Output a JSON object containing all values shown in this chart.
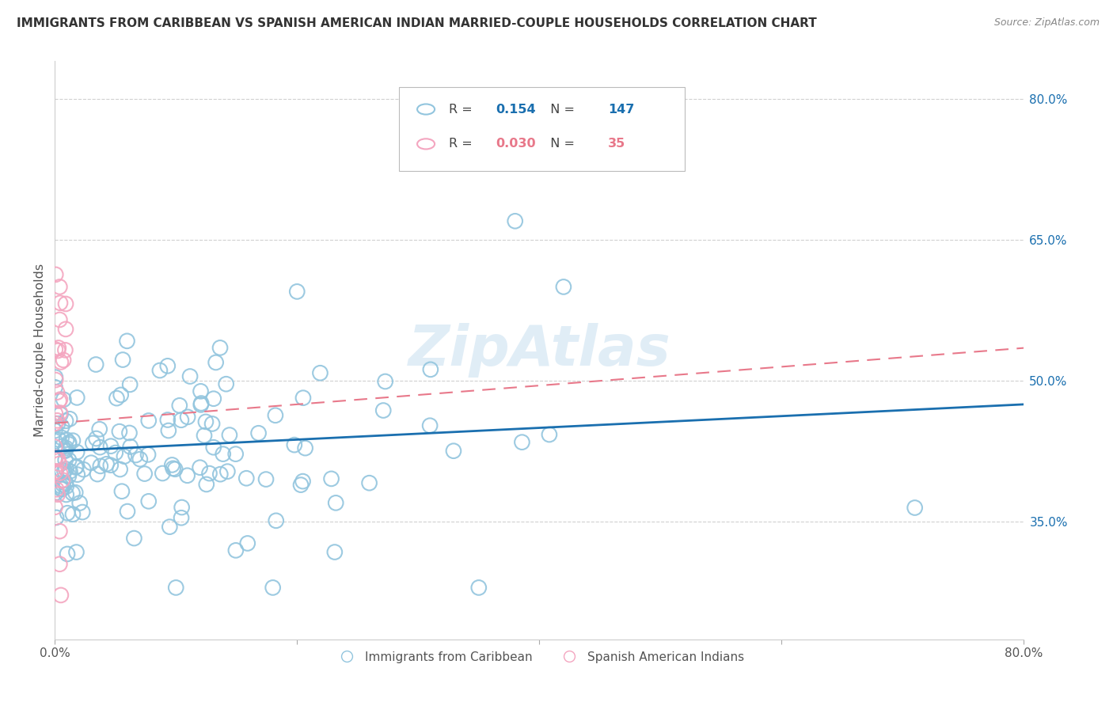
{
  "title": "IMMIGRANTS FROM CARIBBEAN VS SPANISH AMERICAN INDIAN MARRIED-COUPLE HOUSEHOLDS CORRELATION CHART",
  "source": "Source: ZipAtlas.com",
  "ylabel": "Married-couple Households",
  "ytick_vals": [
    0.35,
    0.5,
    0.65,
    0.8
  ],
  "xrange": [
    0.0,
    0.8
  ],
  "yrange": [
    0.225,
    0.84
  ],
  "legend1_label": "Immigrants from Caribbean",
  "legend2_label": "Spanish American Indians",
  "R1": "0.154",
  "N1": "147",
  "R2": "0.030",
  "N2": "35",
  "color_blue": "#92c5de",
  "color_pink": "#f4a6c0",
  "color_blue_line": "#1a6faf",
  "color_pink_line": "#e8788a",
  "watermark": "ZipAtlas",
  "blue_line_x0": 0.0,
  "blue_line_x1": 0.8,
  "blue_line_y0": 0.425,
  "blue_line_y1": 0.475,
  "pink_line_x0": 0.0,
  "pink_line_x1": 0.8,
  "pink_line_y0": 0.455,
  "pink_line_y1": 0.535
}
